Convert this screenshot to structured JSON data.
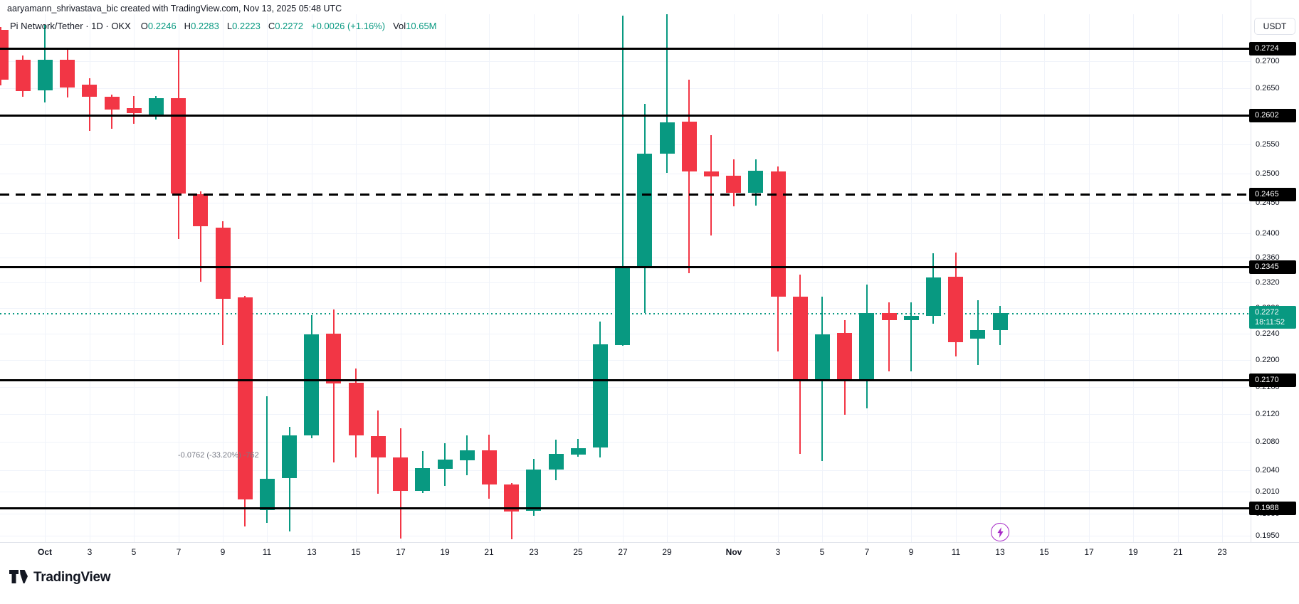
{
  "attribution": "aaryamann_shrivastava_bic created with TradingView.com, Nov 13, 2025 05:48 UTC",
  "legend": {
    "symbol_title": "Pi Network/Tether · 1D · OKX",
    "items": [
      {
        "prefix": "O",
        "value": "0.2246"
      },
      {
        "prefix": "H",
        "value": "0.2283"
      },
      {
        "prefix": "L",
        "value": "0.2223"
      },
      {
        "prefix": "C",
        "value": "0.2272"
      },
      {
        "prefix": "",
        "value": "+0.0026 (+1.16%)"
      },
      {
        "prefix": "Vol",
        "value": "10.65M"
      }
    ]
  },
  "price_axis": {
    "unit_button": "USDT",
    "plain_ticks": [
      "0.2700",
      "0.2650",
      "0.2550",
      "0.2500",
      "0.2450",
      "0.2400",
      "0.2360",
      "0.2320",
      "0.2280",
      "0.2240",
      "0.2200",
      "0.2160",
      "0.2120",
      "0.2080",
      "0.2040",
      "0.2010",
      "0.1980",
      "0.1950"
    ],
    "current_price_label": "0.2272",
    "countdown": "18:11:52"
  },
  "time_axis": {
    "labels": [
      {
        "text": "Oct",
        "day_index": 0,
        "month": true
      },
      {
        "text": "3",
        "day_index": 2
      },
      {
        "text": "5",
        "day_index": 4
      },
      {
        "text": "7",
        "day_index": 6
      },
      {
        "text": "9",
        "day_index": 8
      },
      {
        "text": "11",
        "day_index": 10
      },
      {
        "text": "13",
        "day_index": 12
      },
      {
        "text": "15",
        "day_index": 14
      },
      {
        "text": "17",
        "day_index": 16
      },
      {
        "text": "19",
        "day_index": 18
      },
      {
        "text": "21",
        "day_index": 20
      },
      {
        "text": "23",
        "day_index": 22
      },
      {
        "text": "25",
        "day_index": 24
      },
      {
        "text": "27",
        "day_index": 26
      },
      {
        "text": "29",
        "day_index": 28
      },
      {
        "text": "Nov",
        "day_index": 31,
        "month": true
      },
      {
        "text": "3",
        "day_index": 33
      },
      {
        "text": "5",
        "day_index": 35
      },
      {
        "text": "7",
        "day_index": 37
      },
      {
        "text": "9",
        "day_index": 39
      },
      {
        "text": "11",
        "day_index": 41
      },
      {
        "text": "13",
        "day_index": 43
      },
      {
        "text": "15",
        "day_index": 45
      },
      {
        "text": "17",
        "day_index": 47
      },
      {
        "text": "19",
        "day_index": 49
      },
      {
        "text": "21",
        "day_index": 51
      },
      {
        "text": "23",
        "day_index": 53
      }
    ]
  },
  "annotation": {
    "text": "-0.0762 (-33.20%) -762"
  },
  "event_icon": "lightning-bolt",
  "footer": {
    "logo_text": "TradingView"
  },
  "colors": {
    "up": "#089981",
    "down": "#f23645",
    "level_line": "#000000",
    "grid": "#f0f3fa",
    "axis_text": "#131722",
    "current_label_bg": "#089981",
    "event_purple": "#a72bc7"
  },
  "chart_data": {
    "type": "candlestick",
    "symbol": "Pi Network/Tether",
    "interval": "1D",
    "exchange": "OKX",
    "unit": "USDT",
    "scale": "log",
    "price_range_visible": [
      0.195,
      0.2789
    ],
    "current_price": 0.2272,
    "levels": [
      {
        "price": 0.2724,
        "label": "0.2724",
        "style": "solid"
      },
      {
        "price": 0.2602,
        "label": "0.2602",
        "style": "solid"
      },
      {
        "price": 0.2465,
        "label": "0.2465",
        "style": "dashed"
      },
      {
        "price": 0.2345,
        "label": "0.2345",
        "style": "solid"
      },
      {
        "price": 0.217,
        "label": "0.2170",
        "style": "solid"
      },
      {
        "price": 0.1988,
        "label": "0.1988",
        "style": "solid"
      }
    ],
    "candles": [
      {
        "d": "Sep 29",
        "o": 0.2759,
        "h": 0.2764,
        "l": 0.2656,
        "c": 0.2666
      },
      {
        "d": "Sep 30",
        "o": 0.2703,
        "h": 0.2711,
        "l": 0.2636,
        "c": 0.2645
      },
      {
        "d": "Oct 1",
        "o": 0.2647,
        "h": 0.2768,
        "l": 0.2625,
        "c": 0.2703
      },
      {
        "d": "Oct 2",
        "o": 0.2703,
        "h": 0.2724,
        "l": 0.2634,
        "c": 0.2652
      },
      {
        "d": "Oct 3",
        "o": 0.2657,
        "h": 0.2669,
        "l": 0.2574,
        "c": 0.2635
      },
      {
        "d": "Oct 4",
        "o": 0.2635,
        "h": 0.2639,
        "l": 0.2578,
        "c": 0.2612
      },
      {
        "d": "Oct 5",
        "o": 0.2615,
        "h": 0.2636,
        "l": 0.2586,
        "c": 0.2606
      },
      {
        "d": "Oct 6",
        "o": 0.2602,
        "h": 0.2636,
        "l": 0.2594,
        "c": 0.2633
      },
      {
        "d": "Oct 7",
        "o": 0.2633,
        "h": 0.2725,
        "l": 0.239,
        "c": 0.2467
      },
      {
        "d": "Oct 8",
        "o": 0.2465,
        "h": 0.247,
        "l": 0.2322,
        "c": 0.2411
      },
      {
        "d": "Oct 9",
        "o": 0.2409,
        "h": 0.242,
        "l": 0.2223,
        "c": 0.2294
      },
      {
        "d": "Oct 10",
        "o": 0.2296,
        "h": 0.2299,
        "l": 0.1963,
        "c": 0.1999
      },
      {
        "d": "Oct 11",
        "o": 0.1985,
        "h": 0.2146,
        "l": 0.1968,
        "c": 0.2028
      },
      {
        "d": "Oct 12",
        "o": 0.2029,
        "h": 0.2102,
        "l": 0.1957,
        "c": 0.2089
      },
      {
        "d": "Oct 13",
        "o": 0.2089,
        "h": 0.2269,
        "l": 0.2085,
        "c": 0.2239
      },
      {
        "d": "Oct 14",
        "o": 0.224,
        "h": 0.2278,
        "l": 0.2051,
        "c": 0.2165
      },
      {
        "d": "Oct 15",
        "o": 0.2166,
        "h": 0.2187,
        "l": 0.2058,
        "c": 0.2089
      },
      {
        "d": "Oct 16",
        "o": 0.2088,
        "h": 0.2125,
        "l": 0.2007,
        "c": 0.2058
      },
      {
        "d": "Oct 17",
        "o": 0.2058,
        "h": 0.2099,
        "l": 0.1946,
        "c": 0.2011
      },
      {
        "d": "Oct 18",
        "o": 0.2011,
        "h": 0.2067,
        "l": 0.2008,
        "c": 0.2043
      },
      {
        "d": "Oct 19",
        "o": 0.2042,
        "h": 0.2078,
        "l": 0.2018,
        "c": 0.2055
      },
      {
        "d": "Oct 20",
        "o": 0.2054,
        "h": 0.2089,
        "l": 0.2033,
        "c": 0.2068
      },
      {
        "d": "Oct 21",
        "o": 0.2068,
        "h": 0.209,
        "l": 0.2,
        "c": 0.202
      },
      {
        "d": "Oct 22",
        "o": 0.202,
        "h": 0.2022,
        "l": 0.1946,
        "c": 0.1983
      },
      {
        "d": "Oct 23",
        "o": 0.1984,
        "h": 0.2056,
        "l": 0.1977,
        "c": 0.2041
      },
      {
        "d": "Oct 24",
        "o": 0.2041,
        "h": 0.2083,
        "l": 0.2026,
        "c": 0.2063
      },
      {
        "d": "Oct 25",
        "o": 0.2062,
        "h": 0.2084,
        "l": 0.2059,
        "c": 0.2071
      },
      {
        "d": "Oct 26",
        "o": 0.2072,
        "h": 0.2259,
        "l": 0.2058,
        "c": 0.2224
      },
      {
        "d": "Oct 27",
        "o": 0.2223,
        "h": 0.2786,
        "l": 0.2222,
        "c": 0.2343
      },
      {
        "d": "Oct 28",
        "o": 0.2343,
        "h": 0.2622,
        "l": 0.2272,
        "c": 0.2534
      },
      {
        "d": "Oct 29",
        "o": 0.2534,
        "h": 0.2789,
        "l": 0.2502,
        "c": 0.2589
      },
      {
        "d": "Oct 30",
        "o": 0.259,
        "h": 0.2666,
        "l": 0.2335,
        "c": 0.2503
      },
      {
        "d": "Oct 31",
        "o": 0.2504,
        "h": 0.2567,
        "l": 0.2396,
        "c": 0.2496
      },
      {
        "d": "Nov 1",
        "o": 0.2496,
        "h": 0.2524,
        "l": 0.2444,
        "c": 0.2467
      },
      {
        "d": "Nov 2",
        "o": 0.2468,
        "h": 0.2524,
        "l": 0.2445,
        "c": 0.2505
      },
      {
        "d": "Nov 3",
        "o": 0.2504,
        "h": 0.2512,
        "l": 0.2213,
        "c": 0.2298
      },
      {
        "d": "Nov 4",
        "o": 0.2298,
        "h": 0.2333,
        "l": 0.2063,
        "c": 0.217
      },
      {
        "d": "Nov 5",
        "o": 0.217,
        "h": 0.2298,
        "l": 0.2053,
        "c": 0.2239
      },
      {
        "d": "Nov 6",
        "o": 0.2241,
        "h": 0.2261,
        "l": 0.2119,
        "c": 0.2169
      },
      {
        "d": "Nov 7",
        "o": 0.2169,
        "h": 0.2317,
        "l": 0.2129,
        "c": 0.2272
      },
      {
        "d": "Nov 8",
        "o": 0.2272,
        "h": 0.2289,
        "l": 0.2183,
        "c": 0.2261
      },
      {
        "d": "Nov 9",
        "o": 0.2261,
        "h": 0.2289,
        "l": 0.2183,
        "c": 0.2268
      },
      {
        "d": "Nov 10",
        "o": 0.2268,
        "h": 0.2367,
        "l": 0.2255,
        "c": 0.2328
      },
      {
        "d": "Nov 11",
        "o": 0.2329,
        "h": 0.2368,
        "l": 0.2205,
        "c": 0.2227
      },
      {
        "d": "Nov 12",
        "o": 0.2233,
        "h": 0.2292,
        "l": 0.2192,
        "c": 0.2246
      },
      {
        "d": "Nov 13",
        "o": 0.2246,
        "h": 0.2283,
        "l": 0.2223,
        "c": 0.2272
      }
    ]
  }
}
